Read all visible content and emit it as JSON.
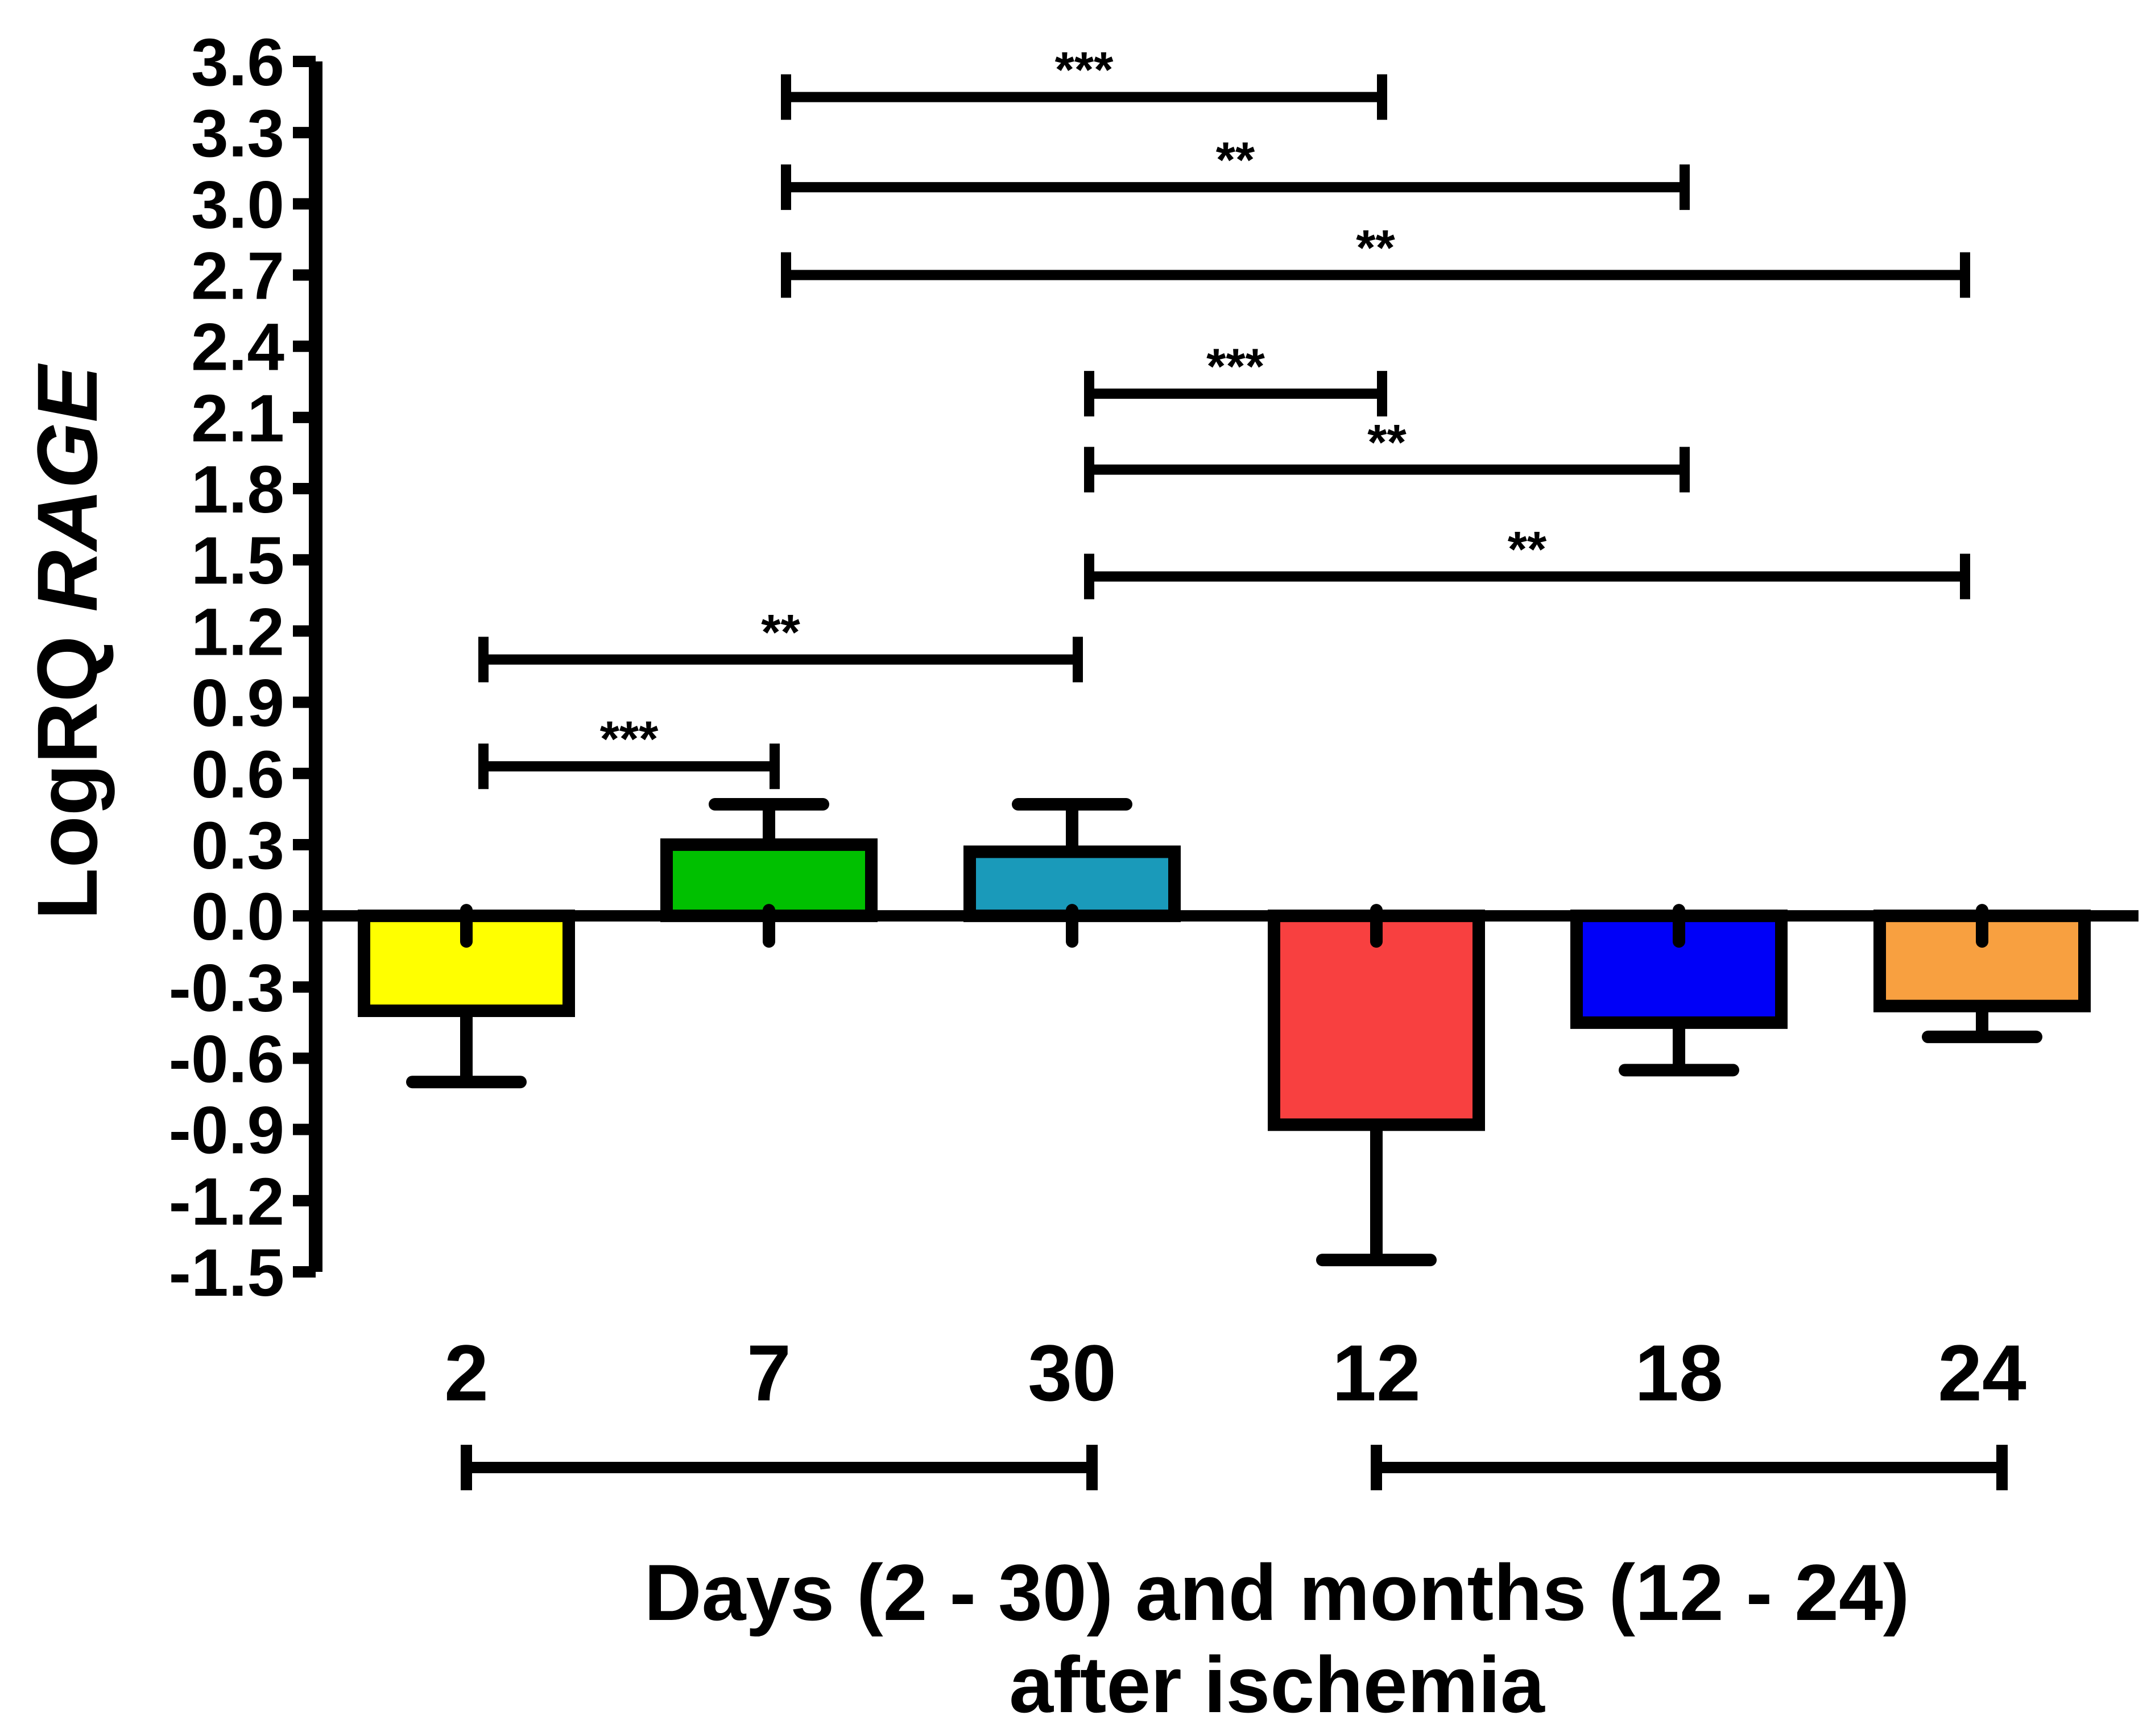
{
  "chart_data": {
    "type": "bar",
    "ylabel_prefix": "LogRQ ",
    "ylabel_gene": "RAGE",
    "xlabel_line1": "Days (2 - 30) and months (12 - 24)",
    "xlabel_line2": "after ischemia",
    "ylim": [
      -1.5,
      3.6
    ],
    "yticks": [
      "3.6",
      "3.3",
      "3.0",
      "2.7",
      "2.4",
      "2.1",
      "1.8",
      "1.5",
      "1.2",
      "0.9",
      "0.6",
      "0.3",
      "0.0",
      "-0.3",
      "-0.6",
      "-0.9",
      "-1.2",
      "-1.5"
    ],
    "ytick_values": [
      3.6,
      3.3,
      3.0,
      2.7,
      2.4,
      2.1,
      1.8,
      1.5,
      1.2,
      0.9,
      0.6,
      0.3,
      0.0,
      -0.3,
      -0.6,
      -0.9,
      -1.2,
      -1.5
    ],
    "categories": [
      "2",
      "7",
      "30",
      "12",
      "18",
      "24"
    ],
    "values": [
      -0.4,
      0.3,
      0.27,
      -0.88,
      -0.45,
      -0.38
    ],
    "errors": [
      0.3,
      0.17,
      0.2,
      0.57,
      0.2,
      0.13
    ],
    "colors": [
      "#ffff00",
      "#00c000",
      "#1a9aba",
      "#f84040",
      "#0000f8",
      "#f8a040"
    ],
    "significance": [
      {
        "from": 1,
        "to": 3,
        "y": 3.45,
        "label": "***"
      },
      {
        "from": 1,
        "to": 4,
        "y": 3.07,
        "label": "**"
      },
      {
        "from": 1,
        "to": 5,
        "y": 2.7,
        "label": "**"
      },
      {
        "from": 2,
        "to": 3,
        "y": 2.2,
        "label": "***"
      },
      {
        "from": 2,
        "to": 4,
        "y": 1.88,
        "label": "**"
      },
      {
        "from": 2,
        "to": 5,
        "y": 1.43,
        "label": "**"
      },
      {
        "from": 0,
        "to": 2,
        "y": 1.08,
        "label": "**"
      },
      {
        "from": 0,
        "to": 1,
        "y": 0.63,
        "label": "***"
      }
    ],
    "group_brackets": [
      {
        "from": 0,
        "to": 2
      },
      {
        "from": 3,
        "to": 5
      }
    ]
  }
}
